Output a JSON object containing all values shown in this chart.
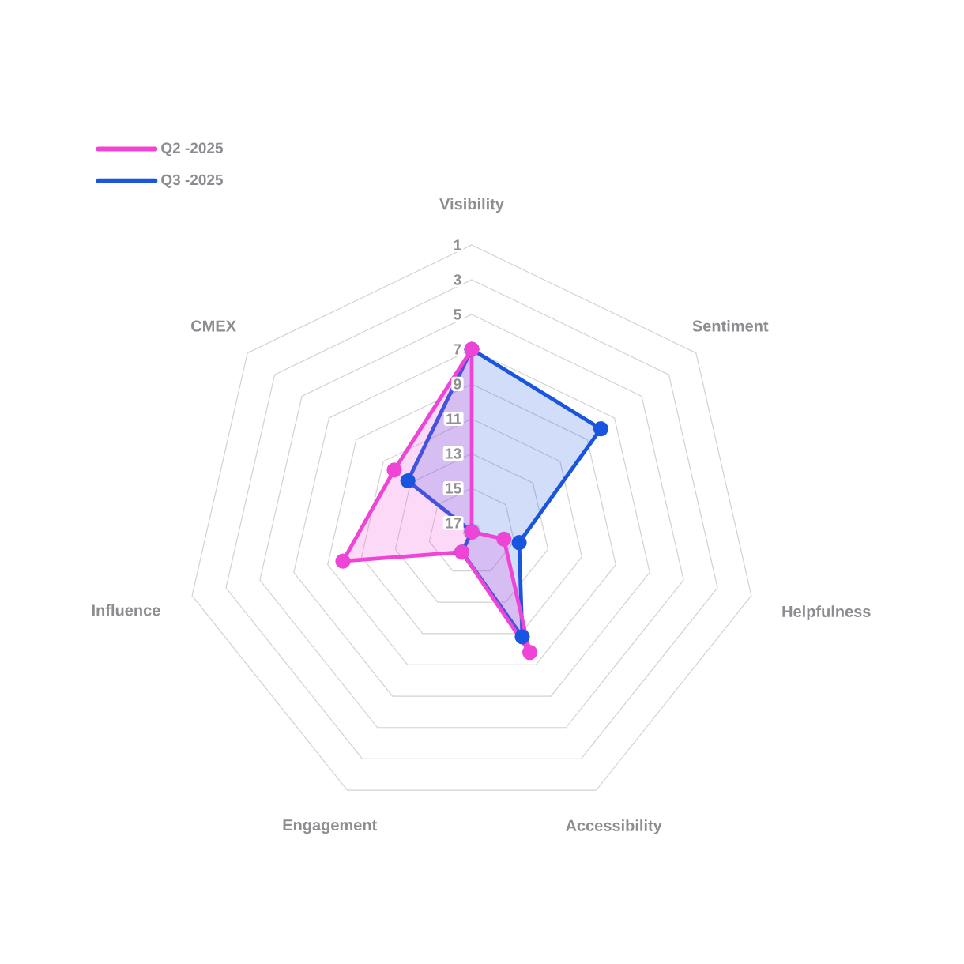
{
  "chart_data": {
    "type": "radar",
    "categories": [
      "Visibility",
      "Sentiment",
      "Helpfulness",
      "Accessibility",
      "Engagement",
      "Influence",
      "CMEX"
    ],
    "series": [
      {
        "name": "Q2 -2025",
        "color": "#ee45d6",
        "values": [
          7,
          17.5,
          15.6,
          9.8,
          16.2,
          9.9,
          11.8
        ]
      },
      {
        "name": "Q3 -2025",
        "color": "#1a55e0",
        "values": [
          7,
          8,
          14.7,
          10.8,
          16.2,
          17.5,
          12.8
        ]
      }
    ],
    "ylim": [
      17.5,
      1
    ],
    "yticks": [
      1,
      3,
      5,
      7,
      9,
      11,
      13,
      15,
      17
    ],
    "grid": true,
    "legend": "top left",
    "marker": "circle",
    "line_style": "solid"
  }
}
